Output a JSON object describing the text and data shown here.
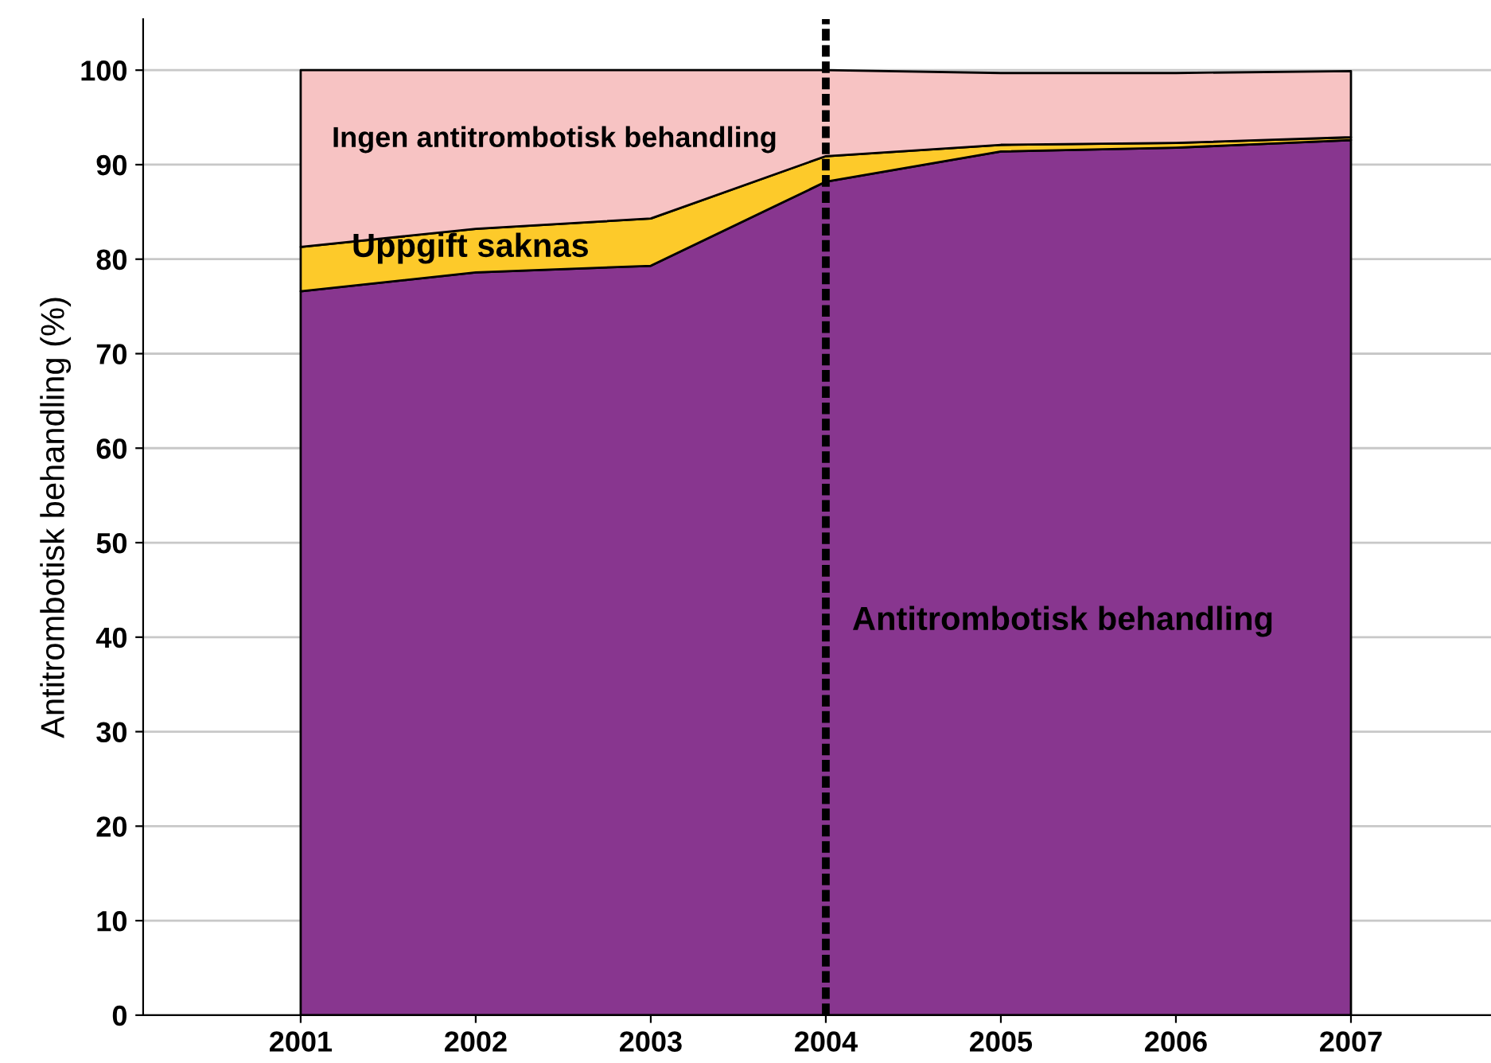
{
  "chart_data": {
    "type": "area",
    "stacked": true,
    "ylabel": "Antitrombotisk behandling (%)",
    "x": [
      2001,
      2002,
      2003,
      2004,
      2005,
      2006,
      2007
    ],
    "series": [
      {
        "name": "Antitrombotisk behandling",
        "color": "#88368f",
        "values": [
          76.6,
          78.6,
          79.3,
          88.2,
          91.4,
          91.8,
          92.6
        ]
      },
      {
        "name": "Uppgift saknas",
        "color": "#fdca2a",
        "values": [
          4.7,
          4.6,
          5.0,
          2.7,
          0.7,
          0.5,
          0.3
        ]
      },
      {
        "name": "Ingen antitrombotisk behandling",
        "color": "#f7c3c3",
        "values": [
          18.7,
          16.8,
          15.7,
          9.1,
          7.6,
          7.4,
          7.0
        ]
      }
    ],
    "xlim": [
      2000.1,
      2007.8
    ],
    "ylim": [
      0,
      105.4
    ],
    "xticks": [
      2001,
      2002,
      2003,
      2004,
      2005,
      2006,
      2007
    ],
    "yticks": [
      0,
      10,
      20,
      30,
      40,
      50,
      60,
      70,
      80,
      90,
      100
    ],
    "grid": "y",
    "legend": false,
    "ref_lines": [
      {
        "axis": "x",
        "value": 2004,
        "color": "#000000",
        "line_style": "dashed"
      }
    ]
  }
}
